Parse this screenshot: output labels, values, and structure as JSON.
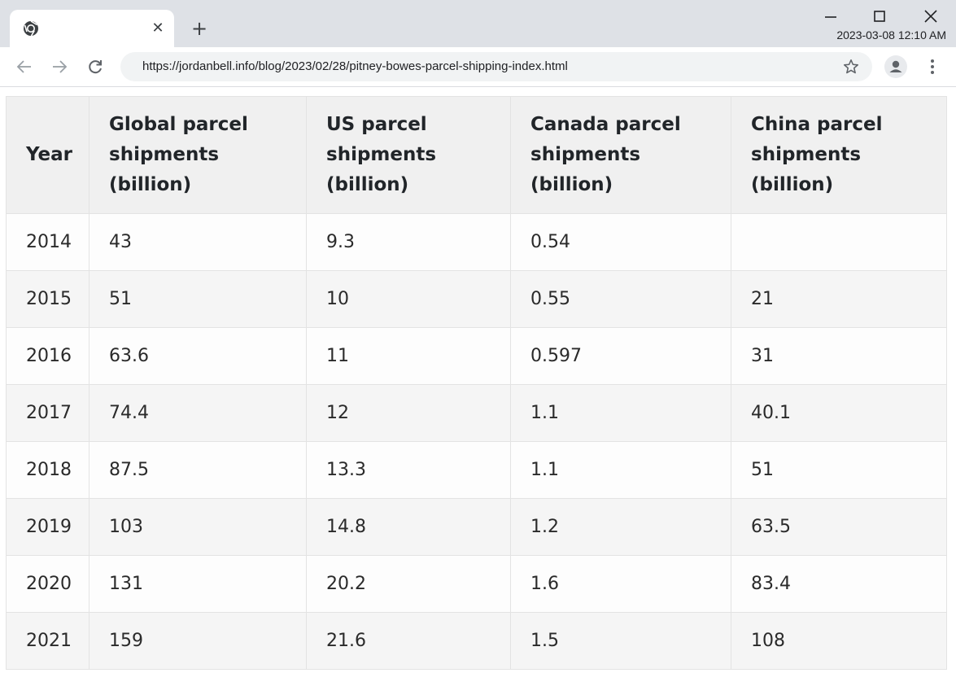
{
  "browser": {
    "tab_close_glyph": "✕",
    "new_tab_glyph": "+",
    "clock": "2023-03-08 12:10 AM",
    "url": "https://jordanbell.info/blog/2023/02/28/pitney-bowes-parcel-shipping-index.html",
    "icons": {
      "favicon": "chrome-icon",
      "minimize": "minimize-icon",
      "maximize": "maximize-icon",
      "close": "close-icon",
      "back": "back-arrow-icon",
      "forward": "forward-arrow-icon",
      "reload": "reload-icon",
      "bookmark": "star-icon",
      "profile": "profile-icon",
      "menu": "more-vert-icon"
    }
  },
  "table": {
    "headers": [
      "Year",
      "Global parcel shipments (billion)",
      "US parcel shipments (billion)",
      "Canada parcel shipments (billion)",
      "China parcel shipments (billion)"
    ],
    "rows": [
      [
        "2014",
        "43",
        "9.3",
        "0.54",
        ""
      ],
      [
        "2015",
        "51",
        "10",
        "0.55",
        "21"
      ],
      [
        "2016",
        "63.6",
        "11",
        "0.597",
        "31"
      ],
      [
        "2017",
        "74.4",
        "12",
        "1.1",
        "40.1"
      ],
      [
        "2018",
        "87.5",
        "13.3",
        "1.1",
        "51"
      ],
      [
        "2019",
        "103",
        "14.8",
        "1.2",
        "63.5"
      ],
      [
        "2020",
        "131",
        "20.2",
        "1.6",
        "83.4"
      ],
      [
        "2021",
        "159",
        "21.6",
        "1.5",
        "108"
      ]
    ]
  }
}
